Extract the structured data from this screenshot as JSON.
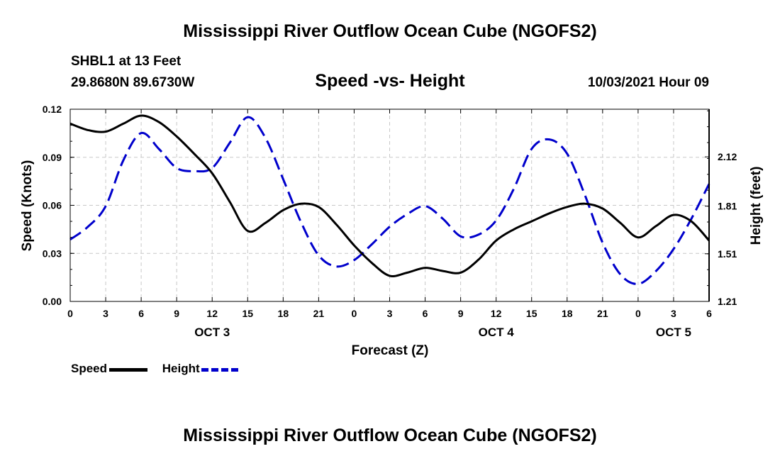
{
  "page": {
    "title_top": "Mississippi River Outflow Ocean Cube (NGOFS2)",
    "title_bottom": "Mississippi River Outflow Ocean Cube (NGOFS2)",
    "station": "SHBL1 at 13 Feet",
    "coords": "29.8680N  89.6730W",
    "datetime": "10/03/2021 Hour 09"
  },
  "chart_data": {
    "type": "line",
    "title": "Speed -vs- Height",
    "xlabel": "Forecast (Z)",
    "ylabel": "Speed (Knots)",
    "y2label": "Height (feet)",
    "x_unit": "forecast hours from OCT 3 00Z",
    "xlim": [
      0,
      54
    ],
    "ylim": [
      0,
      0.12
    ],
    "y2lim": [
      1.21,
      2.42
    ],
    "x_tick_values": [
      0,
      3,
      6,
      9,
      12,
      15,
      18,
      21,
      24,
      27,
      30,
      33,
      36,
      39,
      42,
      45,
      48,
      51,
      54
    ],
    "x_tick_labels": [
      "0",
      "3",
      "6",
      "9",
      "12",
      "15",
      "18",
      "21",
      "0",
      "3",
      "6",
      "9",
      "12",
      "15",
      "18",
      "21",
      "0",
      "3",
      "6"
    ],
    "day_labels": [
      {
        "x": 12,
        "label": "OCT 3"
      },
      {
        "x": 36,
        "label": "OCT 4"
      },
      {
        "x": 51,
        "label": "OCT 5"
      }
    ],
    "y_ticks": [
      0.0,
      0.03,
      0.06,
      0.09,
      0.12
    ],
    "y_tick_labels": [
      "0.00",
      "0.03",
      "0.06",
      "0.09",
      "0.12"
    ],
    "y2_ticks": [
      1.21,
      1.51,
      1.81,
      2.12
    ],
    "y2_tick_labels": [
      "1.21",
      "1.51",
      "1.81",
      "2.12"
    ],
    "grid": true,
    "legend": {
      "position": "bottom-left",
      "items": [
        "Speed",
        "Height"
      ]
    },
    "series": [
      {
        "name": "Speed",
        "axis": "left",
        "color": "#000000",
        "dash": "solid",
        "x": [
          0,
          1.5,
          3,
          4.5,
          6,
          7.5,
          9,
          10.5,
          12,
          13.5,
          15,
          16.5,
          18,
          19.5,
          21,
          22.5,
          24,
          25.5,
          27,
          28.5,
          30,
          31.5,
          33,
          34.5,
          36,
          37.5,
          39,
          40.5,
          42,
          43.5,
          45,
          46.5,
          48,
          49.5,
          51,
          52.5,
          54
        ],
        "values": [
          0.111,
          0.107,
          0.106,
          0.111,
          0.116,
          0.112,
          0.103,
          0.092,
          0.08,
          0.062,
          0.044,
          0.049,
          0.057,
          0.061,
          0.059,
          0.048,
          0.035,
          0.024,
          0.016,
          0.018,
          0.021,
          0.019,
          0.018,
          0.026,
          0.038,
          0.045,
          0.05,
          0.055,
          0.059,
          0.061,
          0.058,
          0.049,
          0.04,
          0.047,
          0.054,
          0.05,
          0.038
        ]
      },
      {
        "name": "Height",
        "axis": "right",
        "color": "#0000cc",
        "dash": "dashed",
        "x": [
          0,
          1.5,
          3,
          4.5,
          6,
          7.5,
          9,
          10.5,
          12,
          13.5,
          15,
          16.5,
          18,
          19.5,
          21,
          22.5,
          24,
          25.5,
          27,
          28.5,
          30,
          31.5,
          33,
          34.5,
          36,
          37.5,
          39,
          40.5,
          42,
          43.5,
          45,
          46.5,
          48,
          49.5,
          51,
          52.5,
          54
        ],
        "values": [
          1.6,
          1.68,
          1.81,
          2.1,
          2.27,
          2.17,
          2.05,
          2.03,
          2.05,
          2.21,
          2.37,
          2.24,
          1.98,
          1.71,
          1.5,
          1.43,
          1.47,
          1.57,
          1.68,
          1.76,
          1.81,
          1.73,
          1.62,
          1.63,
          1.72,
          1.92,
          2.17,
          2.23,
          2.14,
          1.88,
          1.58,
          1.38,
          1.32,
          1.4,
          1.54,
          1.73,
          1.95
        ]
      }
    ]
  }
}
